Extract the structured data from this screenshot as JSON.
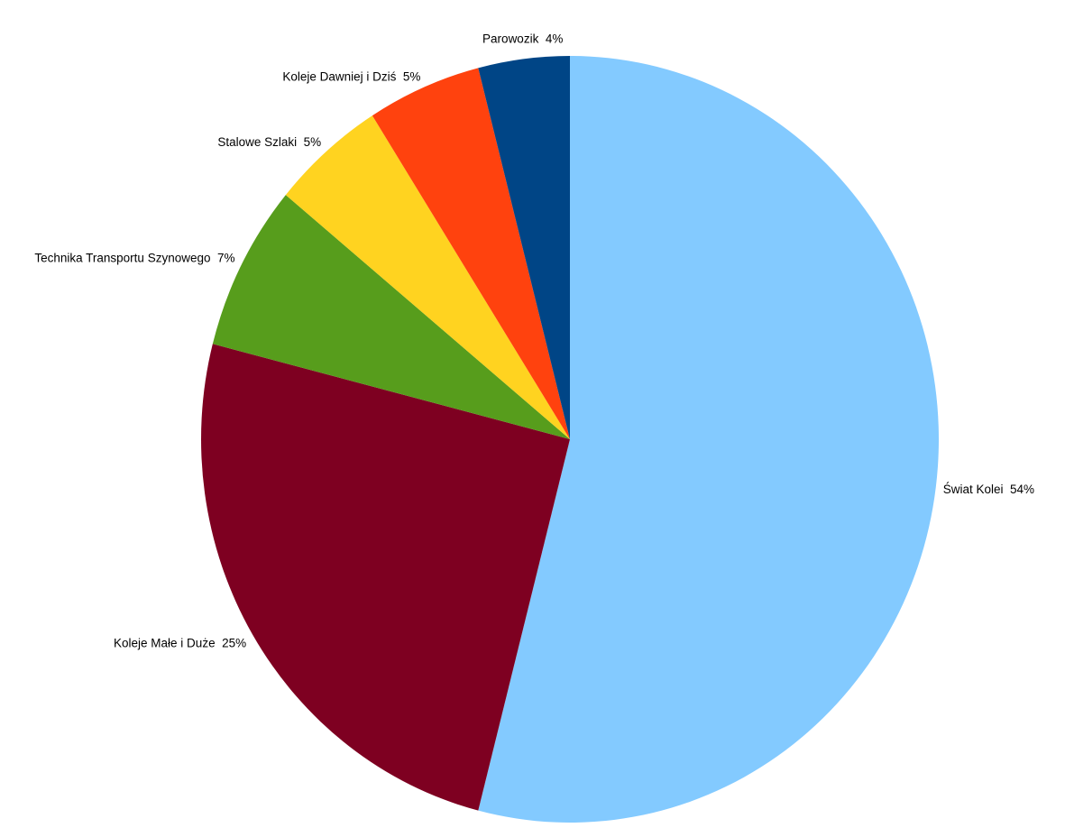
{
  "chart_data": {
    "type": "pie",
    "title": "",
    "categories": [
      "Świat Kolei",
      "Koleje Małe i Duże",
      "Technika Transportu Szynowego",
      "Stalowe Szlaki",
      "Koleje Dawniej i Dziś",
      "Parowozik"
    ],
    "values": [
      54,
      25,
      7,
      5,
      5,
      4
    ],
    "unit": "%",
    "colors": [
      "#83CAFF",
      "#7E0021",
      "#579D1C",
      "#FFD320",
      "#FF420E",
      "#004586"
    ],
    "slice_ids": [
      "swiat-kolei",
      "koleje-male-i-duze",
      "technika-transportu-szynowego",
      "stalowe-szlaki",
      "koleje-dawniej-i-dzis",
      "parowozik"
    ],
    "labels_displayed": [
      "Świat Kolei  54%",
      "Koleje Małe i Duże  25%",
      "Technika Transportu Szynowego  7%",
      "Stalowe Szlaki  5%",
      "Koleje Dawniej i Dziś  5%",
      "Parowozik  4%"
    ],
    "start_angle": "top",
    "direction": "clockwise",
    "legend": "none",
    "grid": "off",
    "background_color": "#FFFFFF",
    "label_color": "#000000"
  }
}
